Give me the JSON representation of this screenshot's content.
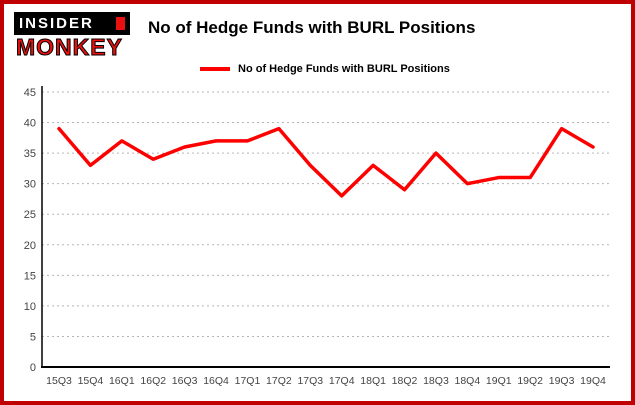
{
  "logo": {
    "line1": "INSIDER",
    "line2": "MONKEY"
  },
  "title": "No of Hedge Funds with BURL Positions",
  "legend": {
    "label": "No of Hedge Funds with BURL Positions"
  },
  "colors": {
    "line": "#ff0000",
    "frame_border": "#c00000",
    "grid": "#b5b5b5",
    "axis": "#000000",
    "tick_text": "#444444"
  },
  "chart_data": {
    "type": "line",
    "title": "No of Hedge Funds with BURL Positions",
    "categories": [
      "15Q3",
      "15Q4",
      "16Q1",
      "16Q2",
      "16Q3",
      "16Q4",
      "17Q1",
      "17Q2",
      "17Q3",
      "17Q4",
      "18Q1",
      "18Q2",
      "18Q3",
      "18Q4",
      "19Q1",
      "19Q2",
      "19Q3",
      "19Q4"
    ],
    "series": [
      {
        "name": "No of Hedge Funds with BURL Positions",
        "values": [
          39,
          33,
          37,
          34,
          36,
          37,
          37,
          39,
          33,
          28,
          33,
          29,
          35,
          30,
          31,
          31,
          39,
          36
        ]
      }
    ],
    "xlabel": "",
    "ylabel": "",
    "ylim": [
      0,
      45
    ],
    "ytick_step": 5,
    "yticks": [
      0,
      5,
      10,
      15,
      20,
      25,
      30,
      35,
      40,
      45
    ],
    "grid": true,
    "legend_position": "top-left"
  }
}
